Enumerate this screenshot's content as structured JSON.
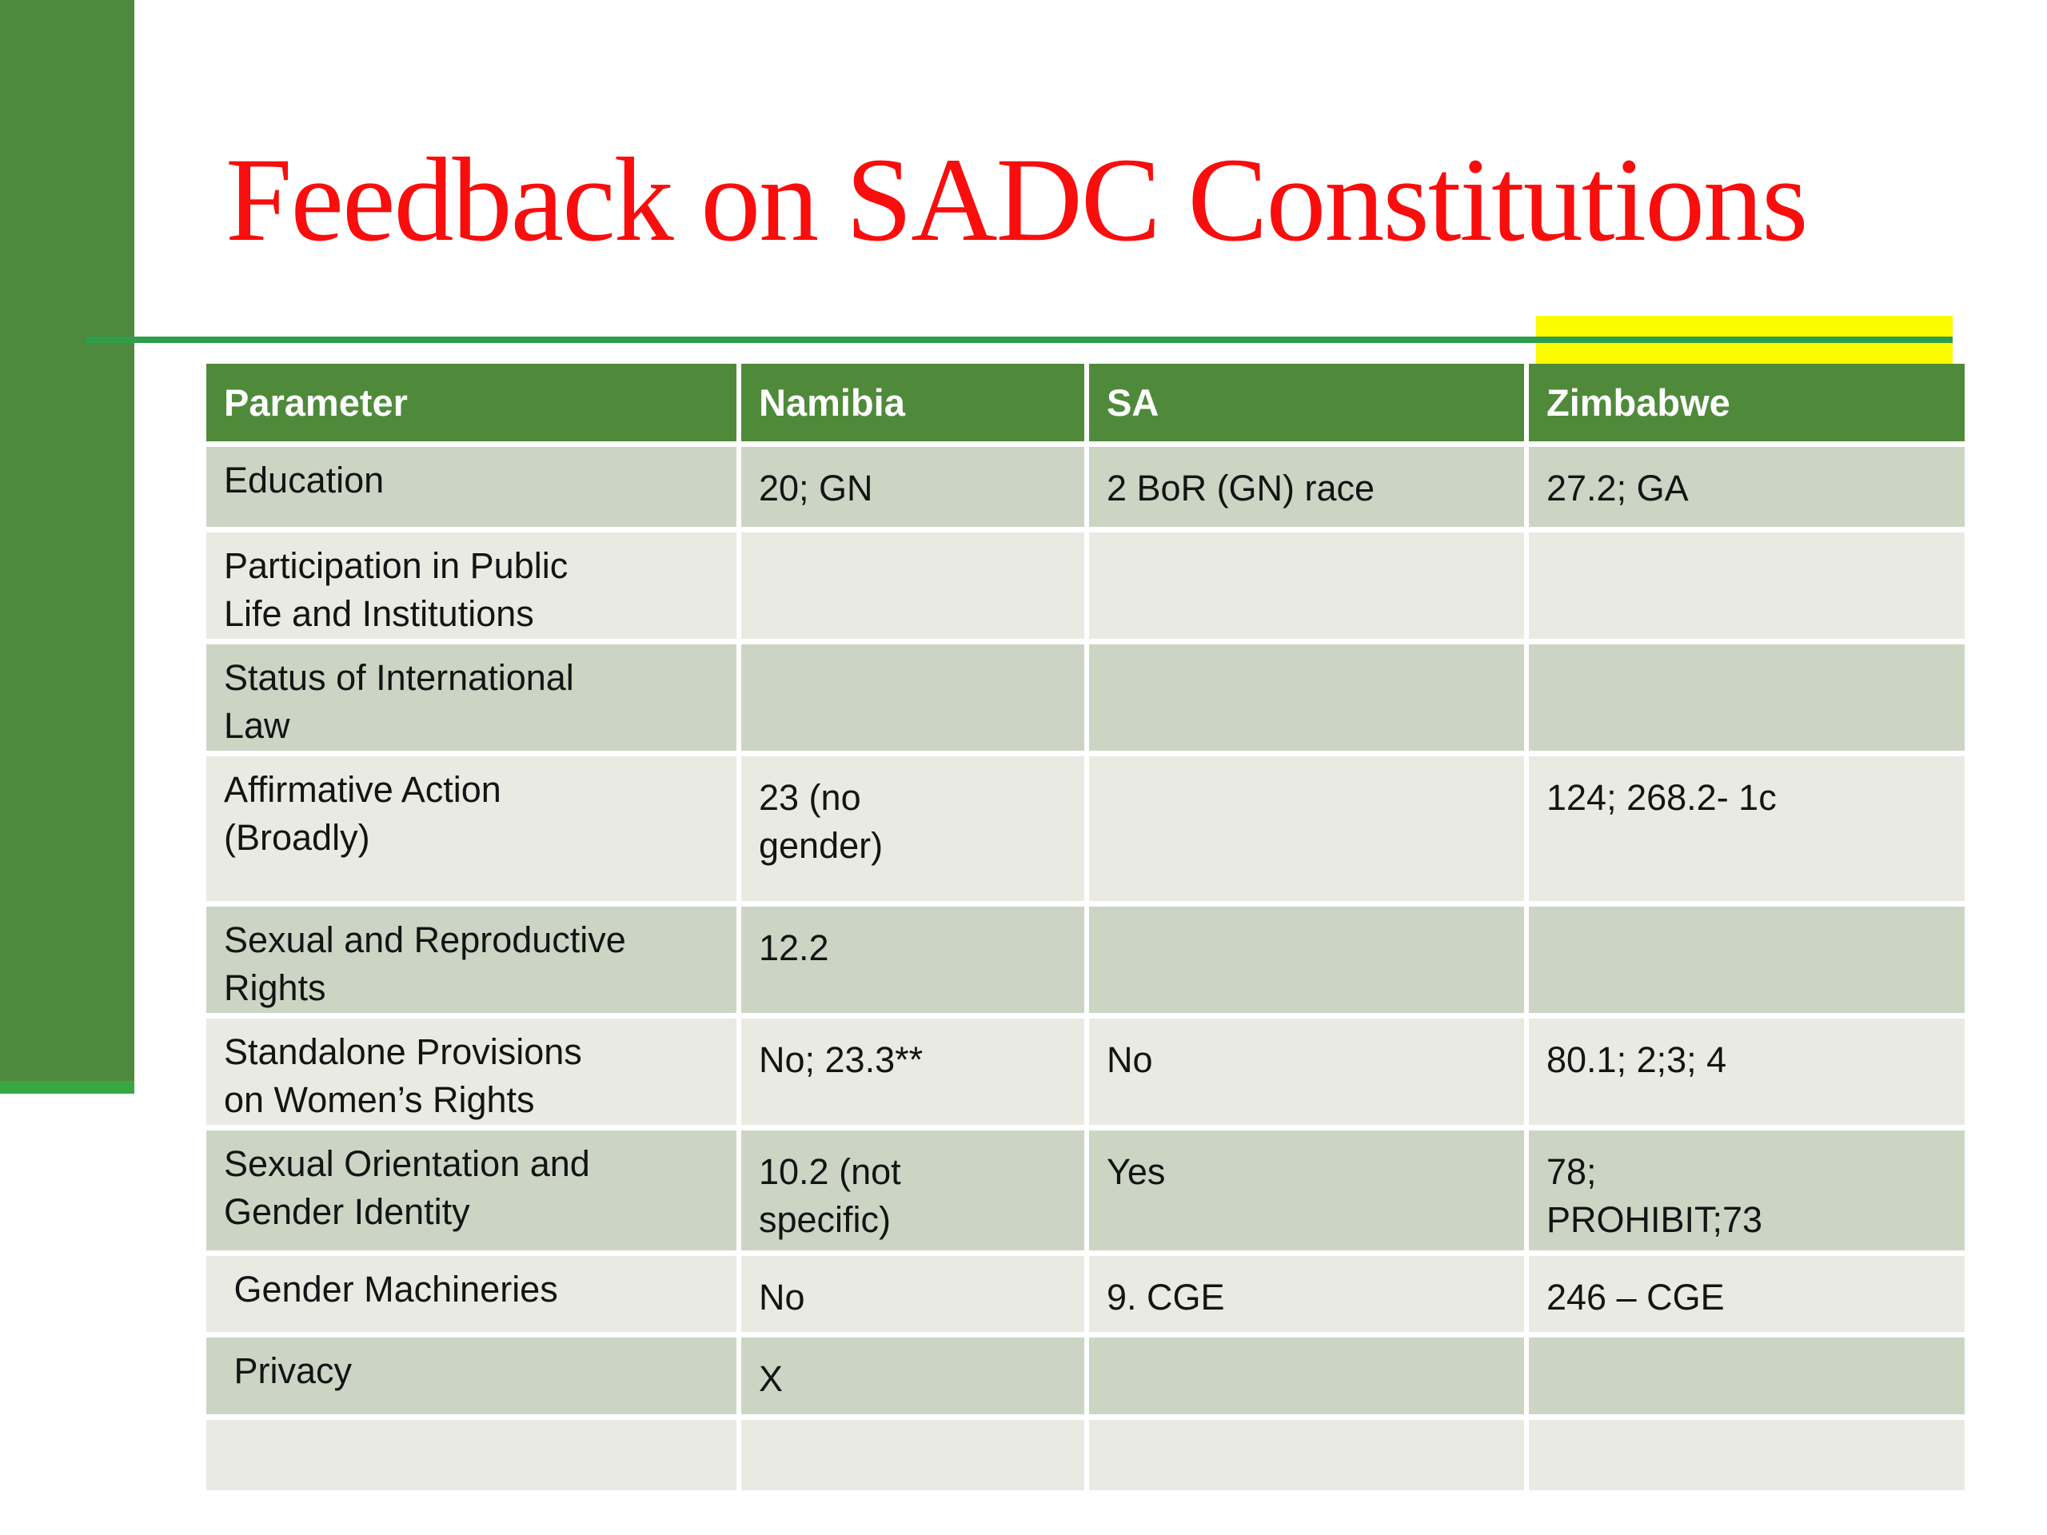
{
  "slide": {
    "title": "Feedback on SADC Constitutions"
  },
  "colors": {
    "title_red": "#f90d0d",
    "sidebar_green": "#4e8a3e",
    "sidebar_bottom_strip_green": "#38a843",
    "divider_rule_green": "#2f9e4c",
    "highlight_yellow": "#fdfb00",
    "table_header_green": "#4f8a3a",
    "row_band_dark": "#ccd5c4",
    "row_band_light": "#e9ebe2"
  },
  "table": {
    "columns": [
      "Parameter",
      "Namibia",
      "SA",
      "Zimbabwe"
    ],
    "rows": [
      {
        "parameter": "Education",
        "namibia": "20; GN",
        "sa": "2 BoR (GN) race",
        "zimbabwe": "27.2; GA"
      },
      {
        "parameter": "Participation in Public\nLife and Institutions",
        "namibia": "",
        "sa": "",
        "zimbabwe": ""
      },
      {
        "parameter": "Status of International\nLaw",
        "namibia": "",
        "sa": "",
        "zimbabwe": ""
      },
      {
        "parameter": "Affirmative Action\n(Broadly)",
        "namibia": "23 (no\ngender)",
        "sa": "",
        "zimbabwe": "124; 268.2- 1c"
      },
      {
        "parameter": "Sexual and Reproductive\nRights",
        "namibia": "12.2",
        "sa": "",
        "zimbabwe": ""
      },
      {
        "parameter": "Standalone Provisions\non Women’s Rights",
        "namibia": "No; 23.3**",
        "sa": "No",
        "zimbabwe": "80.1; 2;3; 4"
      },
      {
        "parameter": "Sexual Orientation and\nGender Identity",
        "namibia": "10.2 (not\nspecific)",
        "sa": "Yes",
        "zimbabwe": "78;\nPROHIBIT;73"
      },
      {
        "parameter": " Gender Machineries",
        "namibia": "No",
        "sa": "9. CGE",
        "zimbabwe": "246 – CGE"
      },
      {
        "parameter": " Privacy",
        "namibia": "X",
        "sa": "",
        "zimbabwe": ""
      },
      {
        "parameter": "",
        "namibia": "",
        "sa": "",
        "zimbabwe": ""
      }
    ]
  }
}
